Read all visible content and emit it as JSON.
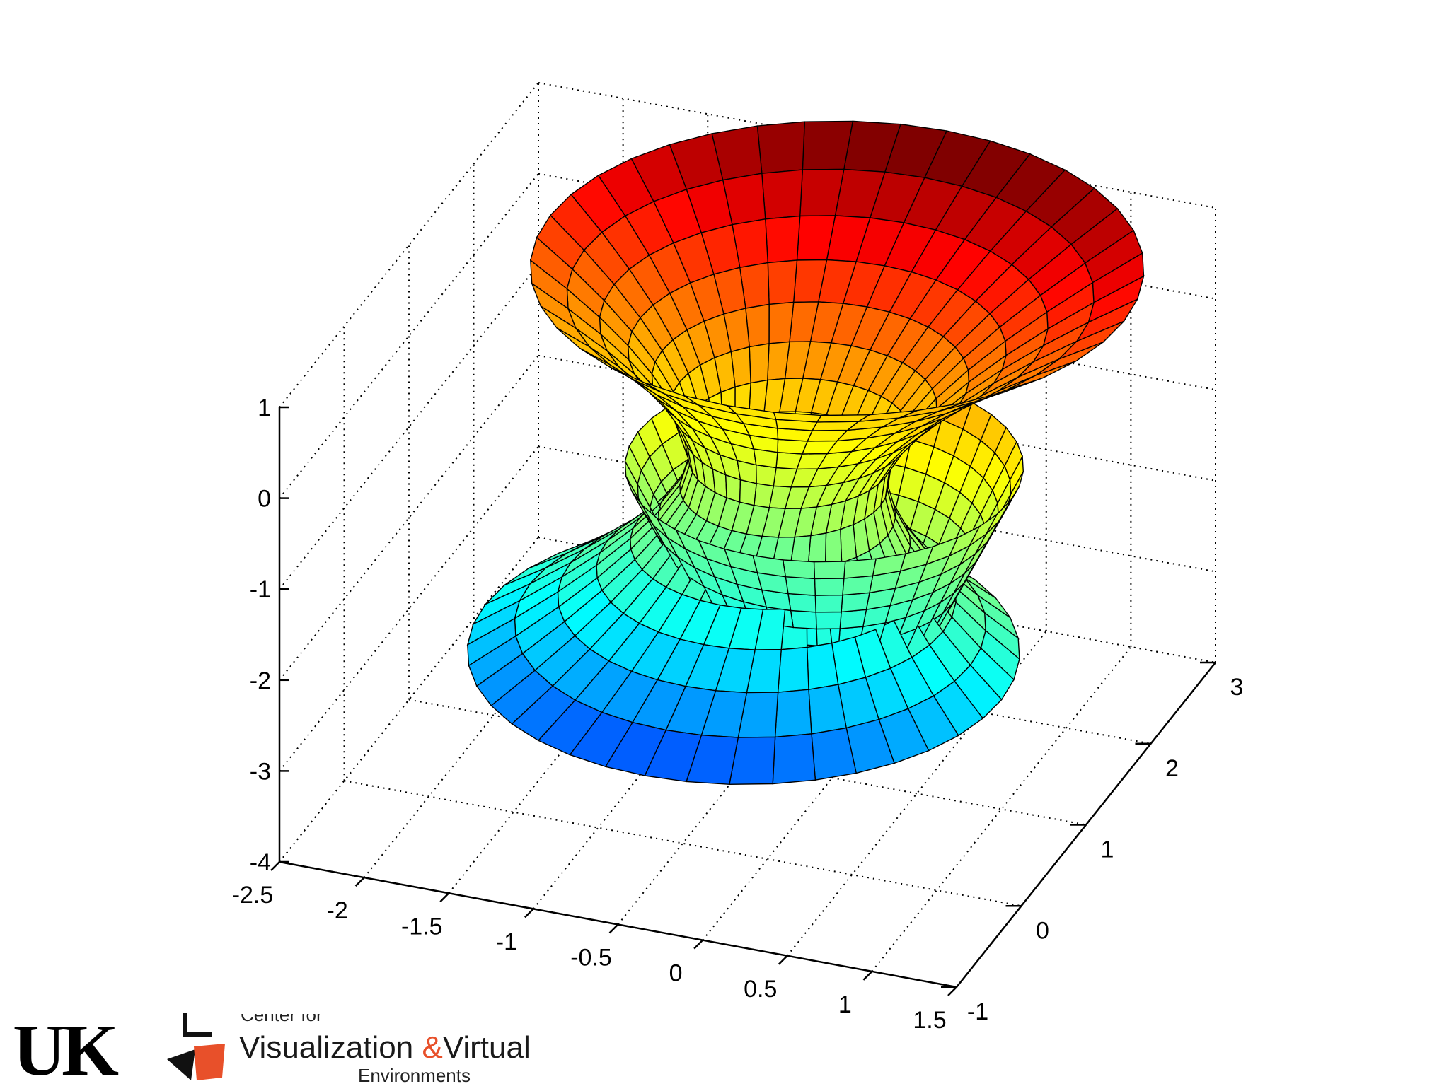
{
  "chart_data": {
    "type": "surface3d",
    "title": "",
    "xlabel": "",
    "ylabel": "",
    "zlabel": "",
    "x_ticks": [
      "-2.5",
      "-2",
      "-1.5",
      "-1",
      "-0.5",
      "0",
      "0.5",
      "1",
      "1.5"
    ],
    "y_ticks": [
      "-1",
      "0",
      "1",
      "2",
      "3"
    ],
    "z_ticks": [
      "-4",
      "-3",
      "-2",
      "-1",
      "0",
      "1"
    ],
    "xlim": [
      -2.5,
      1.5
    ],
    "ylim": [
      -1,
      3
    ],
    "zlim": [
      -4,
      1
    ],
    "grid": true,
    "colormap": "jet",
    "surfaces": [
      {
        "description": "outer flared funnel",
        "axis_x": [
          -0.6,
          -0.2
        ],
        "axis_y": [
          1.2,
          1.6
        ],
        "z_range": [
          -3,
          1
        ]
      },
      {
        "description": "inner cone",
        "axis_x": [
          -0.2
        ],
        "axis_y": [
          1.4
        ],
        "z_range": [
          -3,
          -1
        ]
      }
    ]
  },
  "footer": {
    "uk_logo": "UK",
    "center_for": "Center for",
    "visualization": "Visualization",
    "ampersand": "&",
    "virtual": "Virtual",
    "environments": "Environments",
    "brand_orange": "#e8502a"
  }
}
